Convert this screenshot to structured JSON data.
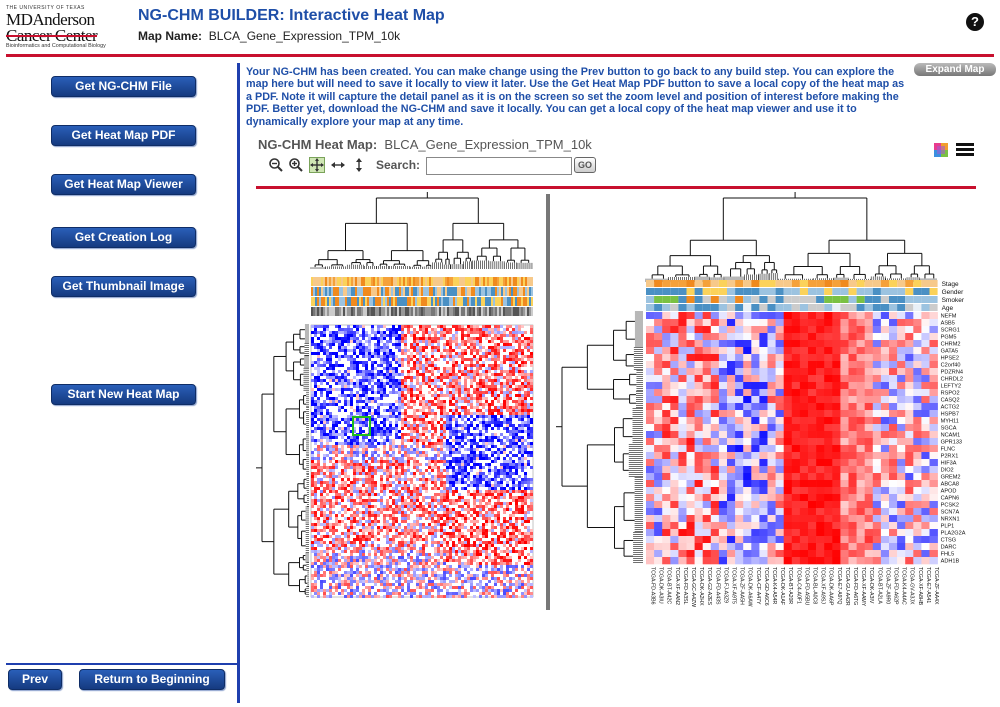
{
  "logo": {
    "univ": "THE UNIVERSITY OF TEXAS",
    "md": "MDAnderson",
    "cc": "Cancer Center",
    "sub": "Bioinformatics and Computational Biology"
  },
  "header": {
    "title": "NG-CHM BUILDER: Interactive Heat Map",
    "map_name_label": "Map Name:",
    "map_name": "BLCA_Gene_Expression_TPM_10k",
    "help_label": "?"
  },
  "sidebar": {
    "buttons": [
      {
        "label": "Get NG-CHM File"
      },
      {
        "label": "Get Heat Map PDF"
      },
      {
        "label": "Get Heat Map Viewer"
      },
      {
        "label": "Get Creation Log"
      },
      {
        "label": "Get Thumbnail Image"
      },
      {
        "label": "Start New Heat Map"
      }
    ],
    "prev_label": "Prev",
    "return_label": "Return to Beginning"
  },
  "main": {
    "message": "Your NG-CHM has been created. You can make change using the Prev button to go back to any build step. You can explore the map here but will need to save it locally to view it later. Use the Get Heat Map PDF button to save a local copy of the heat map as a PDF. Note it will capture the detail panel as it is on the screen so set the zoom level and position of interest before making the PDF. Better yet, download the NG-CHM and save it locally. You can get a local copy of the heat map viewer and use it to dynamically explore your map at any time.",
    "expand_label": "Expand Map",
    "heatmap_label": "NG-CHM Heat Map:",
    "heatmap_name": "BLCA_Gene_Expression_TPM_10k",
    "search_label": "Search:",
    "search_value": "",
    "go_label": "GO"
  },
  "icons": {
    "zoom_out": "zoom-out-icon",
    "zoom_in": "zoom-in-icon",
    "full": "full-view-icon",
    "horizontal": "horizontal-fit-icon",
    "vertical": "vertical-fit-icon",
    "palette": "color-palette-icon",
    "menu": "hamburger-menu-icon"
  },
  "colors": {
    "accent_blue": "#1f4fa8",
    "rule_red": "#c8102e",
    "heat_high": "#e01010",
    "heat_low": "#1030e0"
  },
  "detail": {
    "covariates": [
      "Stage",
      "Gender",
      "Smoker",
      "Age"
    ],
    "genes": [
      "NEFM",
      "ASB5",
      "SCRG1",
      "PGM5",
      "CHRM2",
      "GATA5",
      "HPSE2",
      "C2orf40",
      "PDZRN4",
      "CHRDL2",
      "LEFTY2",
      "RSPO2",
      "CASQ2",
      "ACTG2",
      "HSPB7",
      "MYH11",
      "SGCA",
      "NCAM1",
      "GPR133",
      "FLNC",
      "P2RX1",
      "HIF3A",
      "DIO2",
      "GREM2",
      "ABCA8",
      "APOD",
      "CAPN6",
      "PCSK2",
      "SCN7A",
      "NRXN1",
      "PLP1",
      "PLA2G2A",
      "CTSG",
      "DARC",
      "FHL5",
      "ADH1B"
    ],
    "samples": [
      "TCGA-FD-A3B6",
      "TCGA-DK-A3IU",
      "TCGA-BT-A42C",
      "TCGA-XF-AAN2",
      "TCGA-FD-A3SL",
      "TCGA-GC-A4ZW",
      "TCGA-DK-A2HX",
      "TCGA-G2-A2ES",
      "TCGA-FD-A43S",
      "TCGA-FJ-A3Z9",
      "TCGA-XF-A9T5",
      "TCGA-ZF-AA5H",
      "TCGA-DK-A6AW",
      "TCGA-CF-A47Y",
      "TCGA-GD-A6C6",
      "TCGA-K4-A54R",
      "TCGA-DK-A1AF",
      "TCGA-BT-A20R",
      "TCGA-C4-A0F1",
      "TCGA-FD-A5BU",
      "TCGA-BL-A0C8",
      "TCGA-XF-A9SJ",
      "TCGA-DK-AA6P",
      "TCGA-E7-A97Q",
      "TCGA-GU-A42R",
      "TCGA-FD-A6TG",
      "TCGA-XF-AAMY",
      "TCGA-DK-A3IV",
      "TCGA-BT-A2LA",
      "TCGA-ZF-A9R0",
      "TCGA-FD-A62P",
      "TCGA-K4-A4AC",
      "TCGA-GV-A3JX",
      "TCGA-XF-A8HB",
      "TCGA-E7-A541",
      "TCGA-ZF-AA4X"
    ]
  }
}
